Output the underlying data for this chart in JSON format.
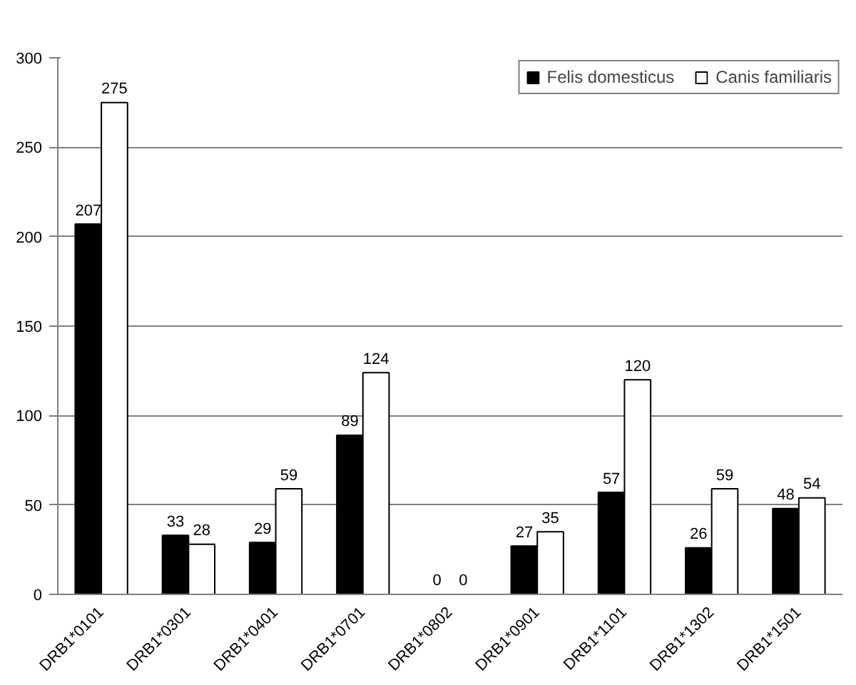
{
  "chart_data": {
    "type": "bar",
    "categories": [
      "DRB1*0101",
      "DRB1*0301",
      "DRB1*0401",
      "DRB1*0701",
      "DRB1*0802",
      "DRB1*0901",
      "DRB1*1101",
      "DRB1*1302",
      "DRB1*1501"
    ],
    "series": [
      {
        "name": "Felis domesticus",
        "color": "#000000",
        "values": [
          207,
          33,
          29,
          89,
          0,
          27,
          57,
          26,
          48
        ]
      },
      {
        "name": "Canis familiaris",
        "color": "#ffffff",
        "values": [
          275,
          28,
          59,
          124,
          0,
          35,
          120,
          59,
          54
        ]
      }
    ],
    "ylim": [
      0,
      300
    ],
    "yticks": [
      0,
      50,
      100,
      150,
      200,
      250,
      300
    ],
    "grid": "y",
    "legend": "top right",
    "data_labels": true
  }
}
